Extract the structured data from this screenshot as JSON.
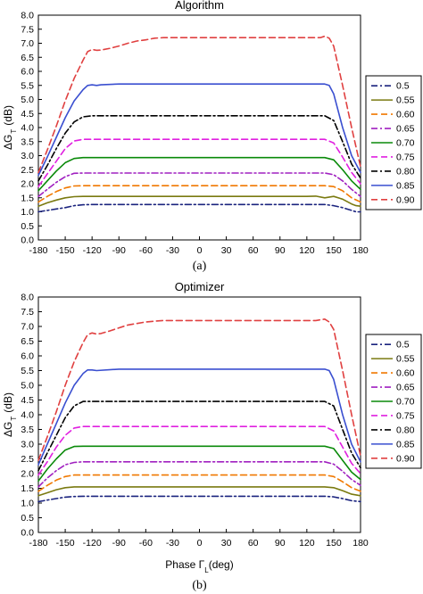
{
  "figure": {
    "captions": [
      "(a)",
      "(b)"
    ]
  },
  "chart_data": [
    {
      "type": "line",
      "title": "Algorithm",
      "xlabel": "",
      "ylabel": "ΔG",
      "ylabel_sub": "T",
      "ylabel_unit": "(dB)",
      "xlim": [
        -180,
        180
      ],
      "ylim": [
        0,
        8
      ],
      "xticks": [
        -180,
        -150,
        -120,
        -90,
        -60,
        -30,
        0,
        30,
        60,
        90,
        120,
        150,
        180
      ],
      "yticks": [
        "0.0",
        "0.5",
        "1.0",
        "1.5",
        "2.0",
        "2.5",
        "3.0",
        "3.5",
        "4.0",
        "4.5",
        "5.0",
        "5.5",
        "6.0",
        "6.5",
        "7.0",
        "7.5",
        "8.0"
      ],
      "grid": false,
      "legend_position": "right",
      "series": [
        {
          "name": "0.5",
          "color": "#1a237e",
          "dash": "7,3,2,3",
          "x": [
            -180,
            -170,
            -160,
            -150,
            -140,
            -130,
            -120,
            -110,
            -100,
            -90,
            0,
            90,
            120,
            140,
            150,
            160,
            170,
            175,
            180
          ],
          "values": [
            1.0,
            1.05,
            1.1,
            1.15,
            1.22,
            1.25,
            1.26,
            1.26,
            1.26,
            1.26,
            1.26,
            1.26,
            1.26,
            1.26,
            1.22,
            1.15,
            1.05,
            1.0,
            1.0
          ]
        },
        {
          "name": "0.55",
          "color": "#7a7a10",
          "dash": "",
          "x": [
            -180,
            -170,
            -160,
            -150,
            -140,
            -130,
            -120,
            -110,
            0,
            110,
            120,
            130,
            140,
            150,
            160,
            170,
            175,
            180
          ],
          "values": [
            1.2,
            1.32,
            1.42,
            1.5,
            1.54,
            1.55,
            1.55,
            1.55,
            1.55,
            1.55,
            1.55,
            1.56,
            1.5,
            1.55,
            1.45,
            1.28,
            1.22,
            1.2
          ]
        },
        {
          "name": "0.60",
          "color": "#f07800",
          "dash": "7,4",
          "x": [
            -180,
            -170,
            -160,
            -150,
            -140,
            -130,
            -120,
            -110,
            0,
            130,
            140,
            150,
            160,
            170,
            180
          ],
          "values": [
            1.35,
            1.55,
            1.72,
            1.85,
            1.92,
            1.93,
            1.93,
            1.93,
            1.93,
            1.93,
            1.93,
            1.9,
            1.75,
            1.5,
            1.35
          ]
        },
        {
          "name": "0.65",
          "color": "#a020c0",
          "dash": "7,3,2,3",
          "x": [
            -180,
            -170,
            -160,
            -150,
            -140,
            -130,
            -120,
            -110,
            0,
            130,
            140,
            150,
            160,
            170,
            180
          ],
          "values": [
            1.55,
            1.8,
            2.05,
            2.25,
            2.37,
            2.38,
            2.38,
            2.38,
            2.38,
            2.38,
            2.38,
            2.32,
            2.1,
            1.8,
            1.55
          ]
        },
        {
          "name": "0.70",
          "color": "#0a8a0a",
          "dash": "",
          "x": [
            -180,
            -170,
            -160,
            -150,
            -140,
            -130,
            -120,
            -110,
            0,
            130,
            140,
            150,
            160,
            170,
            180
          ],
          "values": [
            1.75,
            2.1,
            2.45,
            2.75,
            2.9,
            2.93,
            2.93,
            2.93,
            2.93,
            2.93,
            2.93,
            2.85,
            2.5,
            2.1,
            1.8
          ]
        },
        {
          "name": "0.75",
          "color": "#e020e0",
          "dash": "7,4",
          "x": [
            -180,
            -170,
            -160,
            -150,
            -140,
            -130,
            -120,
            -110,
            0,
            130,
            140,
            150,
            160,
            170,
            180
          ],
          "values": [
            1.9,
            2.35,
            2.8,
            3.25,
            3.52,
            3.58,
            3.58,
            3.58,
            3.58,
            3.58,
            3.58,
            3.45,
            2.95,
            2.4,
            2.0
          ]
        },
        {
          "name": "0.80",
          "color": "#000000",
          "dash": "7,3,2,3",
          "x": [
            -180,
            -170,
            -160,
            -150,
            -140,
            -130,
            -120,
            -110,
            0,
            130,
            140,
            150,
            160,
            170,
            180
          ],
          "values": [
            2.1,
            2.65,
            3.25,
            3.8,
            4.2,
            4.38,
            4.42,
            4.42,
            4.42,
            4.42,
            4.42,
            4.25,
            3.5,
            2.7,
            2.2
          ]
        },
        {
          "name": "0.85",
          "color": "#3a4fd0",
          "dash": "",
          "x": [
            -180,
            -170,
            -160,
            -150,
            -140,
            -130,
            -125,
            -120,
            -115,
            -110,
            -90,
            0,
            90,
            130,
            140,
            145,
            150,
            160,
            170,
            180
          ],
          "values": [
            2.3,
            2.95,
            3.65,
            4.35,
            4.95,
            5.35,
            5.5,
            5.52,
            5.5,
            5.52,
            5.55,
            5.55,
            5.55,
            5.55,
            5.55,
            5.5,
            5.2,
            4.0,
            3.0,
            2.4
          ]
        },
        {
          "name": "0.90",
          "color": "#e04040",
          "dash": "7,4",
          "x": [
            -180,
            -170,
            -160,
            -150,
            -140,
            -130,
            -125,
            -120,
            -115,
            -110,
            -100,
            -90,
            -80,
            -70,
            -60,
            -50,
            -40,
            -30,
            0,
            90,
            120,
            130,
            135,
            140,
            145,
            150,
            160,
            170,
            180
          ],
          "values": [
            2.4,
            3.2,
            4.05,
            4.95,
            5.75,
            6.4,
            6.7,
            6.78,
            6.75,
            6.76,
            6.82,
            6.9,
            7.0,
            7.08,
            7.12,
            7.18,
            7.2,
            7.2,
            7.2,
            7.2,
            7.2,
            7.2,
            7.2,
            7.25,
            7.18,
            6.9,
            5.5,
            4.0,
            2.6
          ]
        }
      ]
    },
    {
      "type": "line",
      "title": "Optimizer",
      "xlabel": "Phase Γ",
      "xlabel_sub": "L",
      "xlabel_unit": "(deg)",
      "ylabel": "ΔG",
      "ylabel_sub": "T",
      "ylabel_unit": "(dB)",
      "xlim": [
        -180,
        180
      ],
      "ylim": [
        0,
        8
      ],
      "xticks": [
        -180,
        -150,
        -120,
        -90,
        -60,
        -30,
        0,
        30,
        60,
        90,
        120,
        150,
        180
      ],
      "yticks": [
        "0.0",
        "0.5",
        "1.0",
        "1.5",
        "2.0",
        "2.5",
        "3.0",
        "3.5",
        "4.0",
        "4.5",
        "5.0",
        "5.5",
        "6.0",
        "6.5",
        "7.0",
        "7.5",
        "8.0"
      ],
      "grid": false,
      "legend_position": "right",
      "series": [
        {
          "name": "0.5",
          "color": "#1a237e",
          "dash": "7,3,2,3",
          "x": [
            -180,
            -170,
            -160,
            -150,
            -140,
            -130,
            -120,
            0,
            140,
            150,
            160,
            170,
            180
          ],
          "values": [
            1.05,
            1.1,
            1.15,
            1.2,
            1.22,
            1.23,
            1.23,
            1.23,
            1.23,
            1.21,
            1.15,
            1.08,
            1.05
          ]
        },
        {
          "name": "0.55",
          "color": "#7a7a10",
          "dash": "",
          "x": [
            -180,
            -170,
            -160,
            -150,
            -140,
            -130,
            -120,
            0,
            140,
            150,
            160,
            170,
            180
          ],
          "values": [
            1.25,
            1.35,
            1.45,
            1.52,
            1.55,
            1.55,
            1.55,
            1.55,
            1.55,
            1.52,
            1.42,
            1.3,
            1.25
          ]
        },
        {
          "name": "0.60",
          "color": "#f07800",
          "dash": "7,4",
          "x": [
            -180,
            -170,
            -160,
            -150,
            -140,
            -130,
            -120,
            0,
            140,
            150,
            160,
            170,
            180
          ],
          "values": [
            1.4,
            1.6,
            1.78,
            1.9,
            1.95,
            1.95,
            1.95,
            1.95,
            1.95,
            1.9,
            1.72,
            1.52,
            1.4
          ]
        },
        {
          "name": "0.65",
          "color": "#a020c0",
          "dash": "7,3,2,3",
          "x": [
            -180,
            -170,
            -160,
            -150,
            -140,
            -130,
            -120,
            0,
            140,
            150,
            160,
            170,
            180
          ],
          "values": [
            1.55,
            1.85,
            2.1,
            2.3,
            2.38,
            2.4,
            2.4,
            2.4,
            2.4,
            2.32,
            2.08,
            1.8,
            1.6
          ]
        },
        {
          "name": "0.70",
          "color": "#0a8a0a",
          "dash": "",
          "x": [
            -180,
            -170,
            -160,
            -150,
            -140,
            -130,
            -120,
            0,
            140,
            150,
            160,
            170,
            180
          ],
          "values": [
            1.75,
            2.15,
            2.5,
            2.8,
            2.92,
            2.93,
            2.93,
            2.93,
            2.93,
            2.85,
            2.45,
            2.05,
            1.8
          ]
        },
        {
          "name": "0.75",
          "color": "#e020e0",
          "dash": "7,4",
          "x": [
            -180,
            -170,
            -160,
            -150,
            -140,
            -130,
            -120,
            0,
            140,
            150,
            160,
            170,
            180
          ],
          "values": [
            1.95,
            2.4,
            2.9,
            3.3,
            3.55,
            3.6,
            3.6,
            3.6,
            3.6,
            3.45,
            2.9,
            2.35,
            2.0
          ]
        },
        {
          "name": "0.80",
          "color": "#000000",
          "dash": "7,3,2,3",
          "x": [
            -180,
            -170,
            -160,
            -150,
            -140,
            -130,
            -120,
            0,
            140,
            150,
            160,
            170,
            180
          ],
          "values": [
            2.1,
            2.7,
            3.3,
            3.9,
            4.3,
            4.45,
            4.45,
            4.45,
            4.45,
            4.3,
            3.5,
            2.7,
            2.2
          ]
        },
        {
          "name": "0.85",
          "color": "#3a4fd0",
          "dash": "",
          "x": [
            -180,
            -170,
            -160,
            -150,
            -140,
            -130,
            -125,
            -120,
            -115,
            -90,
            0,
            140,
            145,
            150,
            160,
            170,
            180
          ],
          "values": [
            2.3,
            3.0,
            3.7,
            4.4,
            5.0,
            5.4,
            5.52,
            5.52,
            5.5,
            5.55,
            5.55,
            5.55,
            5.5,
            5.2,
            4.0,
            3.0,
            2.4
          ]
        },
        {
          "name": "0.90",
          "color": "#e04040",
          "dash": "7,4",
          "x": [
            -180,
            -170,
            -160,
            -150,
            -140,
            -130,
            -125,
            -120,
            -115,
            -110,
            -100,
            -90,
            -80,
            -70,
            -60,
            -50,
            -40,
            -30,
            0,
            90,
            130,
            140,
            145,
            150,
            160,
            170,
            180
          ],
          "values": [
            2.45,
            3.25,
            4.1,
            5.0,
            5.8,
            6.45,
            6.72,
            6.78,
            6.74,
            6.76,
            6.85,
            6.95,
            7.05,
            7.1,
            7.15,
            7.18,
            7.2,
            7.2,
            7.2,
            7.2,
            7.2,
            7.25,
            7.15,
            6.9,
            5.5,
            4.0,
            2.6
          ]
        }
      ]
    }
  ]
}
